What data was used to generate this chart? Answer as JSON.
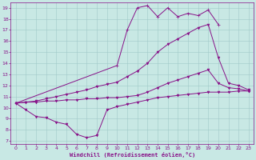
{
  "background_color": "#c8e8e4",
  "line_color": "#881188",
  "grid_color": "#a0c8c8",
  "xlabel": "Windchill (Refroidissement éolien,°C)",
  "xlim_min": -0.5,
  "xlim_max": 23.5,
  "ylim_min": 6.7,
  "ylim_max": 19.5,
  "xticks": [
    0,
    1,
    2,
    3,
    4,
    5,
    6,
    7,
    8,
    9,
    10,
    11,
    12,
    13,
    14,
    15,
    16,
    17,
    18,
    19,
    20,
    21,
    22,
    23
  ],
  "yticks": [
    7,
    8,
    9,
    10,
    11,
    12,
    13,
    14,
    15,
    16,
    17,
    18,
    19
  ],
  "series": [
    {
      "points": [
        [
          0,
          10.4
        ],
        [
          1,
          9.8
        ],
        [
          2,
          9.2
        ],
        [
          3,
          9.1
        ],
        [
          4,
          8.7
        ],
        [
          5,
          8.5
        ],
        [
          6,
          7.6
        ],
        [
          7,
          7.3
        ],
        [
          8,
          7.5
        ],
        [
          9,
          9.8
        ],
        [
          10,
          10.1
        ],
        [
          11,
          10.3
        ],
        [
          12,
          10.5
        ],
        [
          13,
          10.7
        ],
        [
          14,
          10.9
        ],
        [
          15,
          11.0
        ],
        [
          16,
          11.1
        ],
        [
          17,
          11.2
        ],
        [
          18,
          11.3
        ],
        [
          19,
          11.4
        ],
        [
          20,
          11.4
        ],
        [
          21,
          11.4
        ],
        [
          22,
          11.5
        ],
        [
          23,
          11.5
        ]
      ],
      "marker": "v",
      "markersize": 2,
      "lw": 0.7
    },
    {
      "points": [
        [
          0,
          10.4
        ],
        [
          1,
          10.5
        ],
        [
          2,
          10.5
        ],
        [
          3,
          10.6
        ],
        [
          4,
          10.6
        ],
        [
          5,
          10.7
        ],
        [
          6,
          10.7
        ],
        [
          7,
          10.8
        ],
        [
          8,
          10.8
        ],
        [
          9,
          10.9
        ],
        [
          10,
          10.9
        ],
        [
          11,
          11.0
        ],
        [
          12,
          11.1
        ],
        [
          13,
          11.4
        ],
        [
          14,
          11.8
        ],
        [
          15,
          12.2
        ],
        [
          16,
          12.5
        ],
        [
          17,
          12.8
        ],
        [
          18,
          13.1
        ],
        [
          19,
          13.4
        ],
        [
          20,
          12.2
        ],
        [
          21,
          11.8
        ],
        [
          22,
          11.7
        ],
        [
          23,
          11.5
        ]
      ],
      "marker": "v",
      "markersize": 2,
      "lw": 0.7
    },
    {
      "points": [
        [
          0,
          10.4
        ],
        [
          1,
          10.5
        ],
        [
          2,
          10.6
        ],
        [
          3,
          10.8
        ],
        [
          4,
          11.0
        ],
        [
          5,
          11.2
        ],
        [
          6,
          11.4
        ],
        [
          7,
          11.6
        ],
        [
          8,
          11.9
        ],
        [
          9,
          12.1
        ],
        [
          10,
          12.3
        ],
        [
          11,
          12.8
        ],
        [
          12,
          13.3
        ],
        [
          13,
          14.0
        ],
        [
          14,
          15.0
        ],
        [
          15,
          15.7
        ],
        [
          16,
          16.2
        ],
        [
          17,
          16.7
        ],
        [
          18,
          17.2
        ],
        [
          19,
          17.5
        ],
        [
          20,
          14.5
        ],
        [
          21,
          12.2
        ],
        [
          22,
          12.0
        ],
        [
          23,
          11.6
        ]
      ],
      "marker": "v",
      "markersize": 2,
      "lw": 0.7
    },
    {
      "points": [
        [
          0,
          10.4
        ],
        [
          10,
          13.8
        ],
        [
          11,
          17.0
        ],
        [
          12,
          19.0
        ],
        [
          13,
          19.2
        ],
        [
          14,
          18.2
        ],
        [
          15,
          19.0
        ],
        [
          16,
          18.2
        ],
        [
          17,
          18.5
        ],
        [
          18,
          18.3
        ],
        [
          19,
          18.8
        ],
        [
          20,
          17.5
        ]
      ],
      "marker": "+",
      "markersize": 3,
      "lw": 0.7
    }
  ]
}
